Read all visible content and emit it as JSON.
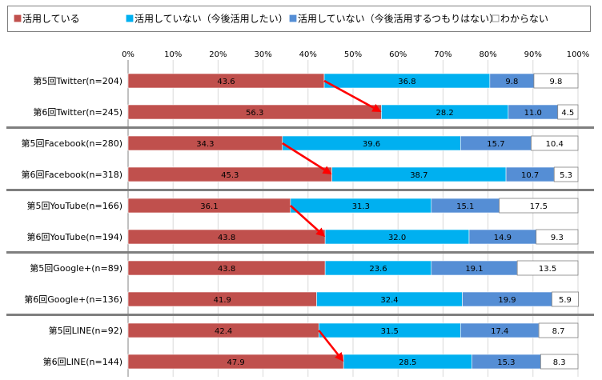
{
  "chart_data": {
    "type": "bar",
    "orientation": "horizontal",
    "stacked": "percent",
    "title": "",
    "xlabel": "",
    "ylabel": "",
    "xlim": [
      0,
      100
    ],
    "x_ticks": [
      "0%",
      "10%",
      "20%",
      "30%",
      "40%",
      "50%",
      "60%",
      "70%",
      "80%",
      "90%",
      "100%"
    ],
    "grid": true,
    "legend_position": "top",
    "categories": [
      "第5回Twitter(n=204)",
      "第6回Twitter(n=245)",
      "第5回Facebook(n=280)",
      "第6回Facebook(n=318)",
      "第5回YouTube(n=166)",
      "第6回YouTube(n=194)",
      "第5回Google+(n=89)",
      "第6回Google+(n=136)",
      "第5回LINE(n=92)",
      "第6回LINE(n=144)"
    ],
    "series": [
      {
        "name": "活用している",
        "color": "#c0504d",
        "values": [
          43.6,
          56.3,
          34.3,
          45.3,
          36.1,
          43.8,
          43.8,
          41.9,
          42.4,
          47.9
        ]
      },
      {
        "name": "活用していない（今後活用したい）",
        "color": "#00b0f0",
        "values": [
          36.8,
          28.2,
          39.6,
          38.7,
          31.3,
          32.0,
          23.6,
          32.4,
          31.5,
          28.5
        ]
      },
      {
        "name": "活用していない（今後活用するつもりはない）",
        "color": "#558ed5",
        "values": [
          9.8,
          11.0,
          15.7,
          10.7,
          15.1,
          14.9,
          19.1,
          19.9,
          17.4,
          15.3
        ]
      },
      {
        "name": "わからない",
        "color": "#ffffff",
        "values": [
          9.8,
          4.5,
          10.4,
          5.3,
          17.5,
          9.3,
          13.5,
          5.9,
          8.7,
          8.3
        ]
      }
    ],
    "annotations": [
      {
        "type": "arrow",
        "color": "#ff0000",
        "from_category": 0,
        "to_category": 1,
        "from_value": 43.6,
        "to_value": 56.3
      },
      {
        "type": "arrow",
        "color": "#ff0000",
        "from_category": 2,
        "to_category": 3,
        "from_value": 34.3,
        "to_value": 45.3
      },
      {
        "type": "arrow",
        "color": "#ff0000",
        "from_category": 4,
        "to_category": 5,
        "from_value": 36.1,
        "to_value": 43.8
      },
      {
        "type": "arrow",
        "color": "#ff0000",
        "from_category": 8,
        "to_category": 9,
        "from_value": 42.4,
        "to_value": 47.9
      }
    ]
  }
}
